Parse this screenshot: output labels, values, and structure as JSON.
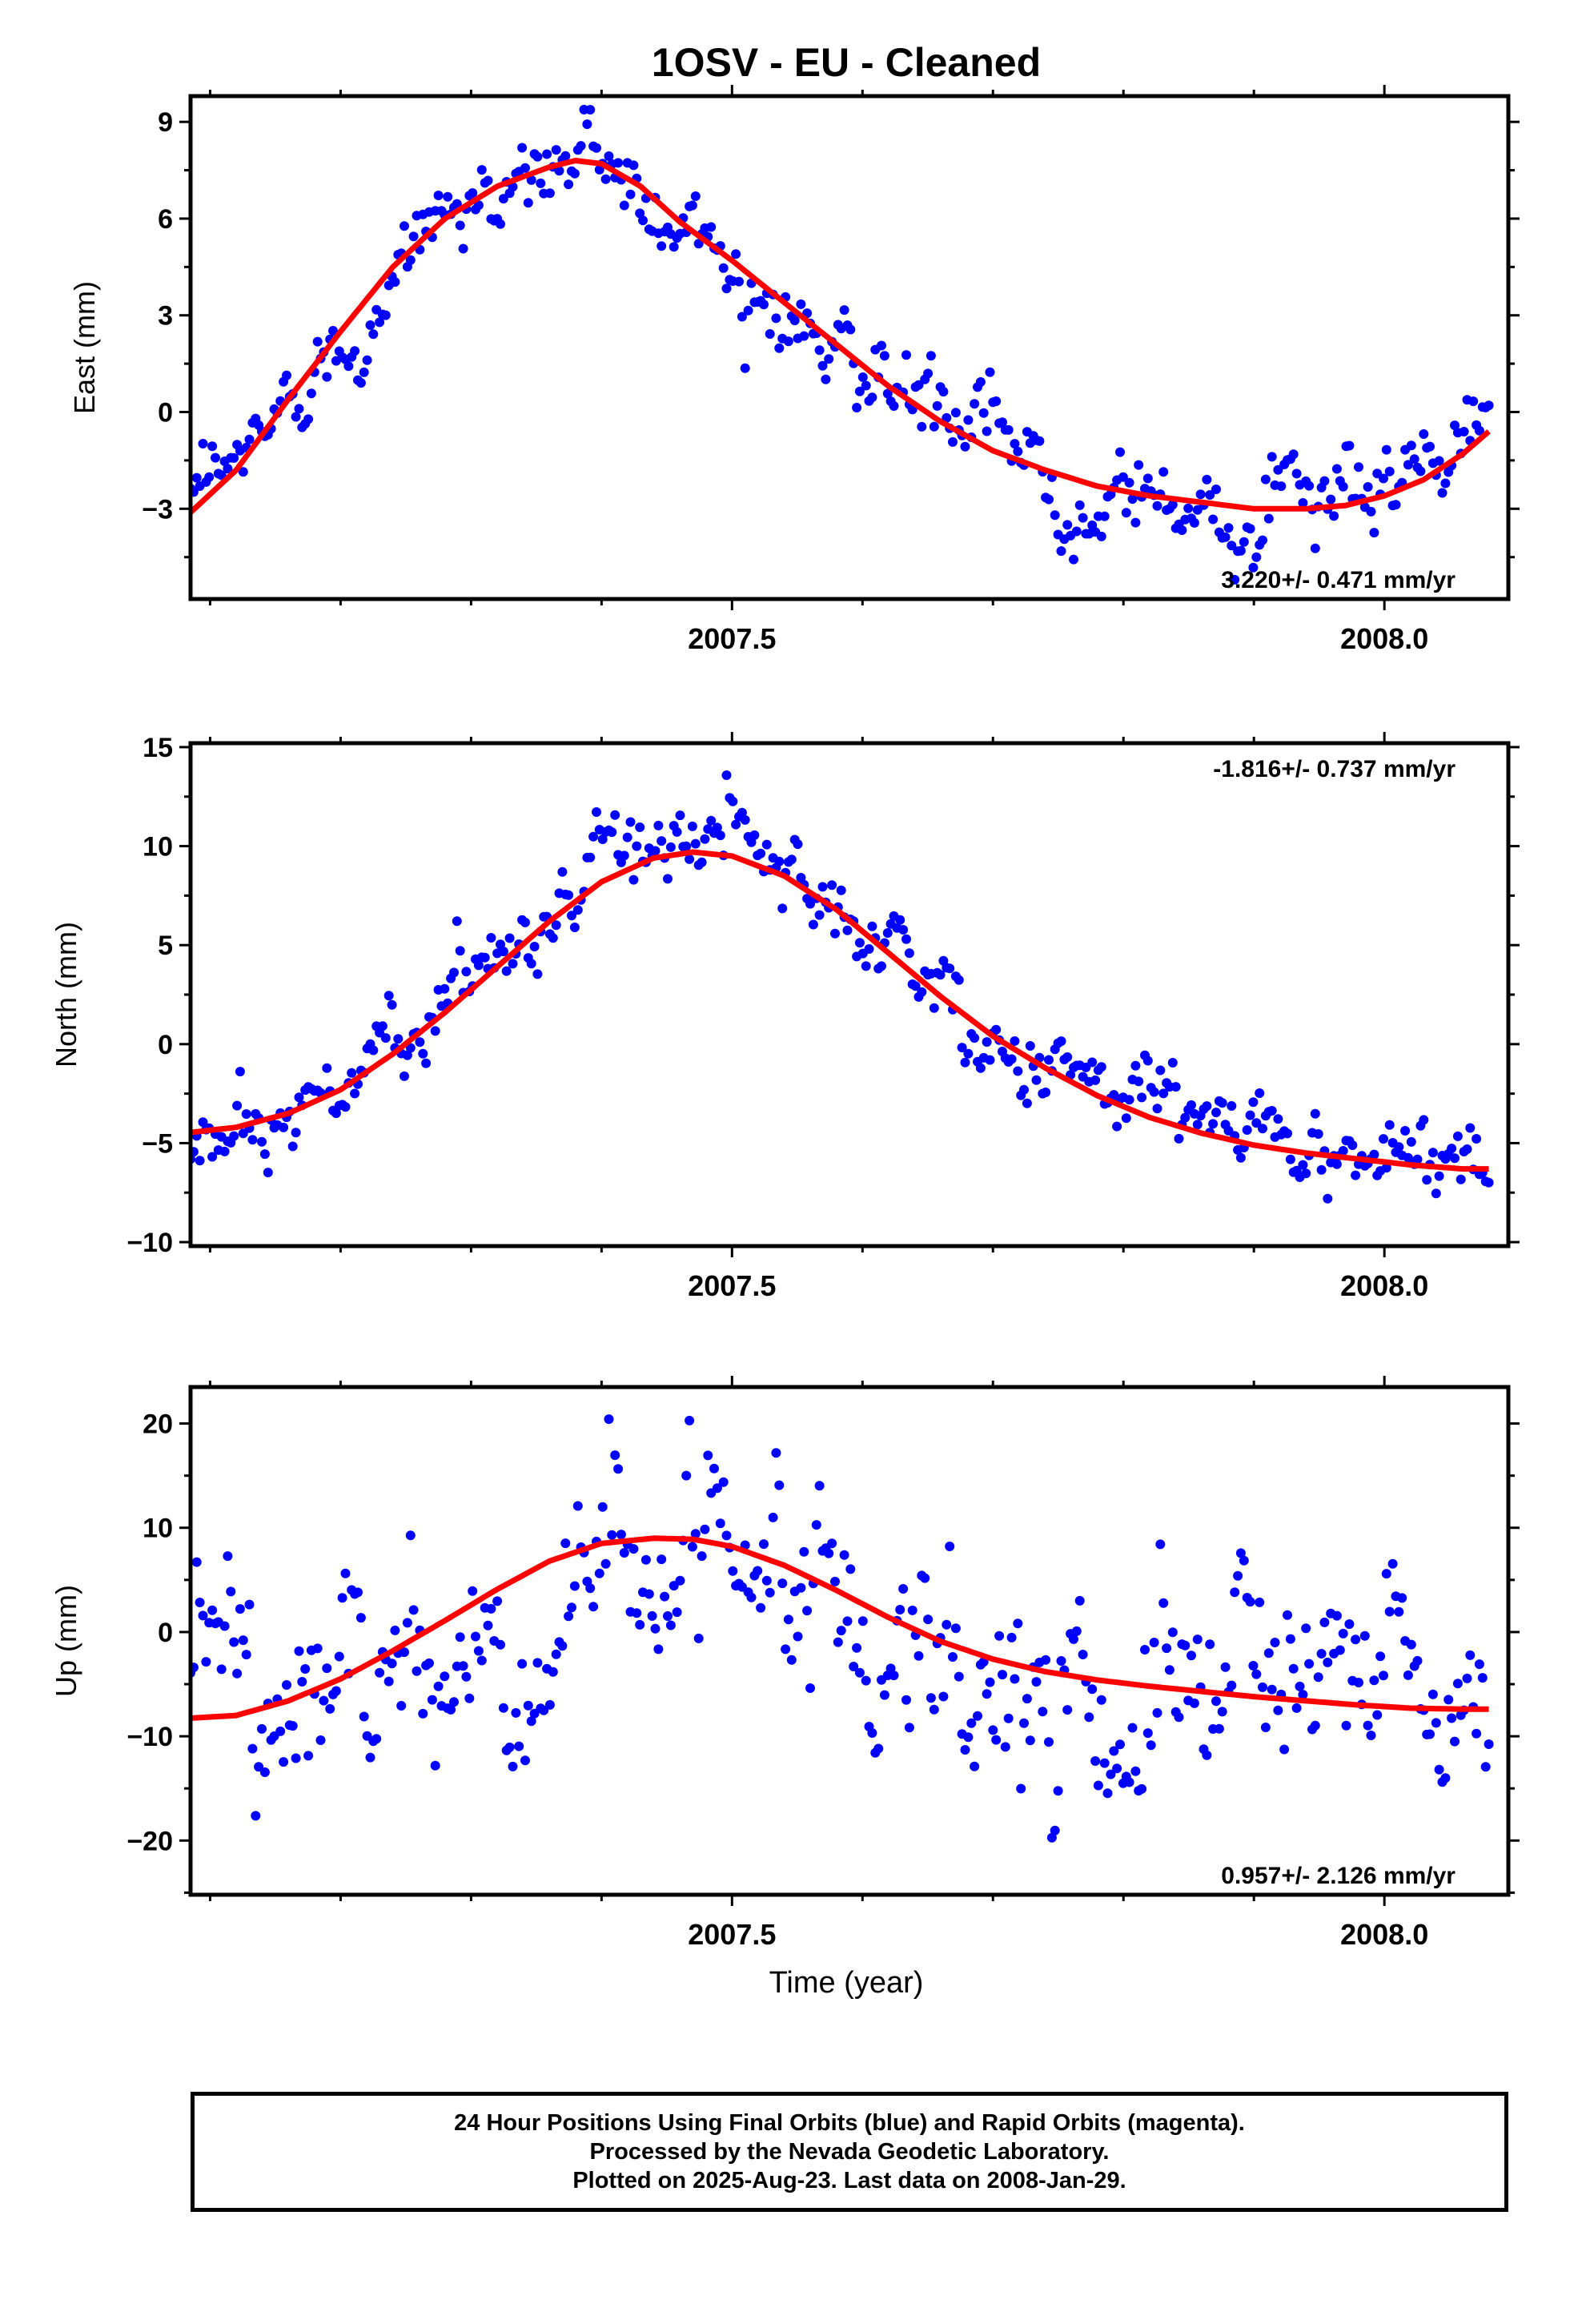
{
  "figure": {
    "title": "1OSV  - EU - Cleaned",
    "xlabel": "Time (year)"
  },
  "colors": {
    "points": "#0000ff",
    "fit": "#ff0000",
    "frame": "#000000"
  },
  "chart_data": [
    {
      "type": "scatter",
      "panel": "east",
      "ylabel": "East (mm)",
      "xlim": [
        2007.085,
        2008.095
      ],
      "ylim": [
        -5.8,
        9.8
      ],
      "yticks": [
        -3,
        0,
        3,
        6,
        9
      ],
      "ytick_labels": [
        "−3",
        "0",
        "3",
        "6",
        "9"
      ],
      "xticks": [
        2007.5,
        2008.0
      ],
      "xtick_labels": [
        "2007.5",
        "2008.0"
      ],
      "rate_label": "3.220+/- 0.471 mm/yr",
      "rate_position": "bottom-right",
      "fit": {
        "x": [
          2007.08,
          2007.12,
          2007.16,
          2007.2,
          2007.24,
          2007.28,
          2007.32,
          2007.36,
          2007.38,
          2007.4,
          2007.43,
          2007.46,
          2007.5,
          2007.54,
          2007.58,
          2007.62,
          2007.66,
          2007.7,
          2007.74,
          2007.78,
          2007.82,
          2007.86,
          2007.9,
          2007.94,
          2007.97,
          2008.0,
          2008.03,
          2008.06,
          2008.08
        ],
        "y": [
          -3.3,
          -1.8,
          0.4,
          2.5,
          4.5,
          6.0,
          7.0,
          7.6,
          7.8,
          7.7,
          7.0,
          5.9,
          4.7,
          3.4,
          2.1,
          0.8,
          -0.3,
          -1.2,
          -1.8,
          -2.3,
          -2.6,
          -2.8,
          -3.0,
          -3.0,
          -2.9,
          -2.6,
          -2.1,
          -1.3,
          -0.6
        ]
      },
      "n_points": 420,
      "scatter_estimate": {
        "noise_sd": 0.75,
        "step_before_2007_46_offset": 0.3
      }
    },
    {
      "type": "scatter",
      "panel": "north",
      "ylabel": "North (mm)",
      "xlim": [
        2007.085,
        2008.095
      ],
      "ylim": [
        -10.2,
        15.2
      ],
      "yticks": [
        -10,
        -5,
        0,
        5,
        10,
        15
      ],
      "ytick_labels": [
        "−10",
        "−5",
        "0",
        "5",
        "10",
        "15"
      ],
      "xticks": [
        2007.5,
        2008.0
      ],
      "xtick_labels": [
        "2007.5",
        "2008.0"
      ],
      "rate_label": "-1.816+/- 0.737 mm/yr",
      "rate_position": "top-right",
      "fit": {
        "x": [
          2007.08,
          2007.12,
          2007.16,
          2007.2,
          2007.24,
          2007.28,
          2007.32,
          2007.36,
          2007.4,
          2007.44,
          2007.47,
          2007.5,
          2007.54,
          2007.58,
          2007.62,
          2007.66,
          2007.7,
          2007.74,
          2007.78,
          2007.82,
          2007.86,
          2007.9,
          2007.94,
          2007.98,
          2008.02,
          2008.06,
          2008.08
        ],
        "y": [
          -4.5,
          -4.2,
          -3.5,
          -2.3,
          -0.5,
          1.6,
          3.9,
          6.2,
          8.2,
          9.4,
          9.7,
          9.5,
          8.5,
          6.8,
          4.6,
          2.4,
          0.4,
          -1.2,
          -2.6,
          -3.7,
          -4.5,
          -5.1,
          -5.5,
          -5.8,
          -6.1,
          -6.3,
          -6.3
        ]
      },
      "n_points": 420,
      "scatter_estimate": {
        "noise_sd": 1.1
      }
    },
    {
      "type": "scatter",
      "panel": "up",
      "ylabel": "Up (mm)",
      "xlim": [
        2007.085,
        2008.095
      ],
      "ylim": [
        -25.2,
        23.5
      ],
      "yticks": [
        -20,
        -10,
        0,
        10,
        20
      ],
      "ytick_labels": [
        "−20",
        "−10",
        "0",
        "10",
        "20"
      ],
      "xticks": [
        2007.5,
        2008.0
      ],
      "xtick_labels": [
        "2007.5",
        "2008.0"
      ],
      "rate_label": "0.957+/- 2.126 mm/yr",
      "rate_position": "bottom-right",
      "fit": {
        "x": [
          2007.08,
          2007.12,
          2007.16,
          2007.2,
          2007.24,
          2007.28,
          2007.32,
          2007.36,
          2007.4,
          2007.44,
          2007.47,
          2007.5,
          2007.54,
          2007.58,
          2007.62,
          2007.66,
          2007.7,
          2007.74,
          2007.78,
          2007.82,
          2007.86,
          2007.9,
          2007.94,
          2007.98,
          2008.02,
          2008.06,
          2008.08
        ],
        "y": [
          -8.3,
          -8.0,
          -6.6,
          -4.5,
          -1.8,
          1.1,
          4.1,
          6.8,
          8.5,
          9.0,
          8.9,
          8.2,
          6.4,
          4.0,
          1.4,
          -0.9,
          -2.6,
          -3.8,
          -4.6,
          -5.2,
          -5.7,
          -6.2,
          -6.6,
          -7.0,
          -7.3,
          -7.4,
          -7.4
        ]
      },
      "n_points": 420,
      "scatter_estimate": {
        "noise_sd": 5.5
      }
    }
  ],
  "footer": {
    "line1": "24 Hour Positions Using Final Orbits (blue) and Rapid Orbits (magenta).",
    "line2": "Processed by the Nevada Geodetic Laboratory.",
    "line3": "Plotted on 2025-Aug-23. Last data on 2008-Jan-29."
  }
}
